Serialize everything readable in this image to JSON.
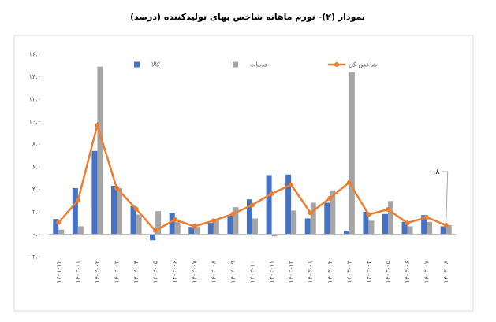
{
  "chart_data": {
    "type": "bar",
    "title": "نمودار (۲)- تورم ماهانه شاخص بهای تولیدکننده (درصد)",
    "categories": [
      "۱۴۰۱-۱۲",
      "۱۴۰۲-۰۱",
      "۱۴۰۲-۰۲",
      "۱۴۰۲-۰۳",
      "۱۴۰۲-۰۴",
      "۱۴۰۲-۰۵",
      "۱۴۰۲-۰۶",
      "۱۴۰۲-۰۷",
      "۱۴۰۲-۰۸",
      "۱۴۰۲-۰۹",
      "۱۴۰۲-۱۰",
      "۱۴۰۲-۱۱",
      "۱۴۰۲-۱۲",
      "۱۴۰۳-۰۱",
      "۱۴۰۳-۰۲",
      "۱۴۰۳-۰۳",
      "۱۴۰۳-۰۴",
      "۱۴۰۳-۰۵",
      "۱۴۰۳-۰۶",
      "۱۴۰۳-۰۷",
      "۱۴۰۳-۰۸"
    ],
    "series": [
      {
        "name": "کالا",
        "type": "bar",
        "color": "#4472c4",
        "values": [
          1.35,
          4.1,
          7.4,
          4.3,
          2.5,
          -0.55,
          1.9,
          0.65,
          1.0,
          1.7,
          3.1,
          5.25,
          5.3,
          1.4,
          2.8,
          0.3,
          2.0,
          1.8,
          1.1,
          1.7,
          0.7
        ]
      },
      {
        "name": "خدمات",
        "type": "bar",
        "color": "#a5a5a5",
        "values": [
          0.4,
          0.7,
          14.9,
          4.1,
          1.75,
          2.05,
          1.1,
          0.65,
          1.25,
          2.4,
          1.4,
          -0.2,
          2.1,
          2.8,
          3.9,
          14.4,
          1.2,
          2.95,
          0.7,
          1.1,
          0.8
        ]
      },
      {
        "name": "شاخص کل",
        "type": "line",
        "color": "#ed7d31",
        "values": [
          1.05,
          3.0,
          9.7,
          4.1,
          2.25,
          0.3,
          1.3,
          0.7,
          1.2,
          1.8,
          2.6,
          3.6,
          4.4,
          1.9,
          3.2,
          4.6,
          1.75,
          2.2,
          1.0,
          1.5,
          0.8
        ],
        "value_labels": [
          null,
          null,
          null,
          null,
          null,
          null,
          null,
          null,
          null,
          null,
          null,
          null,
          null,
          null,
          null,
          null,
          null,
          null,
          null,
          null,
          "۰.۸"
        ]
      }
    ],
    "ylim": [
      -2,
      16
    ],
    "yticks": [
      {
        "value": -2,
        "label": "-۲.۰"
      },
      {
        "value": 0,
        "label": "۰.۰"
      },
      {
        "value": 2,
        "label": "۲.۰"
      },
      {
        "value": 4,
        "label": "۴.۰"
      },
      {
        "value": 6,
        "label": "۶.۰"
      },
      {
        "value": 8,
        "label": "۸.۰"
      },
      {
        "value": 10,
        "label": "۱۰.۰"
      },
      {
        "value": 12,
        "label": "۱۲.۰"
      },
      {
        "value": 14,
        "label": "۱۴.۰"
      },
      {
        "value": 16,
        "label": "۱۶.۰"
      }
    ],
    "grid": false
  }
}
